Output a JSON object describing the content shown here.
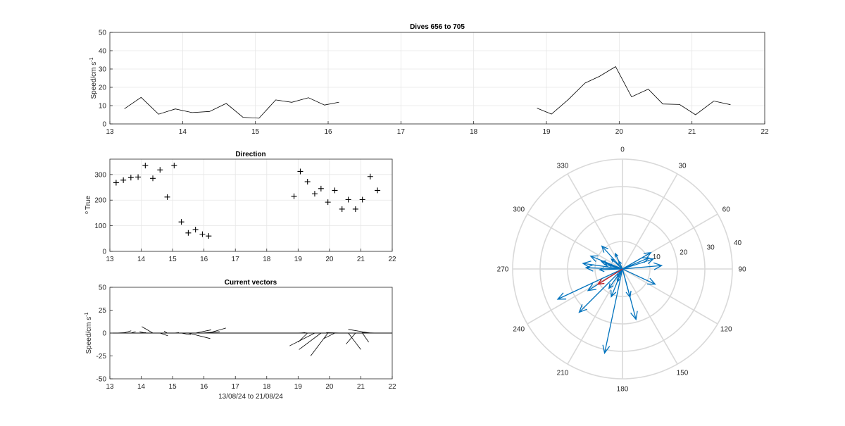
{
  "chart_data": [
    {
      "type": "line",
      "title": "Dives 656 to 705",
      "ylabel_main": "Speed/cm s",
      "ylabel_sup": "-1",
      "xlim": [
        13,
        22
      ],
      "ylim": [
        0,
        50
      ],
      "xticks": [
        13,
        14,
        15,
        16,
        17,
        18,
        19,
        20,
        21,
        22
      ],
      "yticks": [
        0,
        10,
        20,
        30,
        40,
        50
      ],
      "grid": true,
      "segments": [
        {
          "x": [
            13.2,
            13.43,
            13.67,
            13.9,
            14.13,
            14.37,
            14.6,
            14.83,
            15.05,
            15.28,
            15.5,
            15.73,
            15.95,
            16.15
          ],
          "y": [
            8.3,
            14.5,
            5.3,
            8.2,
            6.2,
            6.8,
            11.2,
            3.6,
            3.1,
            13.1,
            11.8,
            14.3,
            10.3,
            11.9
          ]
        },
        {
          "x": [
            18.87,
            19.07,
            19.3,
            19.53,
            19.73,
            19.95,
            20.17,
            20.4,
            20.6,
            20.83,
            21.05,
            21.3,
            21.53
          ],
          "y": [
            8.6,
            5.4,
            13.3,
            22.3,
            26.0,
            31.3,
            14.8,
            19.0,
            10.9,
            10.6,
            5.0,
            12.5,
            10.5
          ]
        }
      ]
    },
    {
      "type": "scatter",
      "title": "Direction",
      "ylabel_main": "True",
      "ylabel_prefix": "o",
      "xlim": [
        13,
        22
      ],
      "ylim": [
        0,
        360
      ],
      "xticks": [
        13,
        14,
        15,
        16,
        17,
        18,
        19,
        20,
        21,
        22
      ],
      "yticks": [
        0,
        100,
        200,
        300
      ],
      "grid": true,
      "marker": "+",
      "points": [
        [
          13.2,
          268
        ],
        [
          13.43,
          278
        ],
        [
          13.67,
          288
        ],
        [
          13.9,
          290
        ],
        [
          14.13,
          335
        ],
        [
          14.37,
          285
        ],
        [
          14.6,
          318
        ],
        [
          14.83,
          212
        ],
        [
          15.05,
          335
        ],
        [
          15.28,
          115
        ],
        [
          15.5,
          72
        ],
        [
          15.73,
          85
        ],
        [
          15.95,
          67
        ],
        [
          16.15,
          60
        ],
        [
          18.87,
          215
        ],
        [
          19.07,
          312
        ],
        [
          19.3,
          272
        ],
        [
          19.53,
          225
        ],
        [
          19.73,
          245
        ],
        [
          19.95,
          192
        ],
        [
          20.17,
          238
        ],
        [
          20.4,
          165
        ],
        [
          20.6,
          202
        ],
        [
          20.83,
          165
        ],
        [
          21.05,
          202
        ],
        [
          21.3,
          292
        ],
        [
          21.53,
          238
        ]
      ]
    },
    {
      "type": "vector",
      "title": "Current vectors",
      "ylabel_main": "Speed/cm s",
      "ylabel_sup": "-1",
      "xlabel": "13/08/24 to 21/08/24",
      "xlim": [
        13,
        22
      ],
      "ylim": [
        -50,
        50
      ],
      "xticks": [
        13,
        14,
        15,
        16,
        17,
        18,
        19,
        20,
        21,
        22
      ],
      "yticks": [
        -50,
        -25,
        0,
        25,
        50
      ],
      "grid": false,
      "sticks": [
        {
          "x": 13.2,
          "dx": 0.3,
          "dy": 0.5
        },
        {
          "x": 13.43,
          "dx": 0.25,
          "dy": 2.5
        },
        {
          "x": 13.67,
          "dx": 0.15,
          "dy": 1.5
        },
        {
          "x": 13.9,
          "dx": 0.25,
          "dy": 0.5
        },
        {
          "x": 14.13,
          "dx": -0.18,
          "dy": 1.5
        },
        {
          "x": 14.37,
          "dx": -0.35,
          "dy": 7.0
        },
        {
          "x": 14.6,
          "dx": 0.25,
          "dy": -3.0
        },
        {
          "x": 14.83,
          "dx": -0.1,
          "dy": 2.0
        },
        {
          "x": 15.05,
          "dx": 0.15,
          "dy": 0.5
        },
        {
          "x": 15.28,
          "dx": 0.3,
          "dy": -2.0
        },
        {
          "x": 15.5,
          "dx": 0.7,
          "dy": -6.0
        },
        {
          "x": 15.73,
          "dx": 0.5,
          "dy": 3.5
        },
        {
          "x": 15.95,
          "dx": 0.55,
          "dy": 1.5
        },
        {
          "x": 16.15,
          "dx": 0.55,
          "dy": 5.5
        },
        {
          "x": 18.87,
          "dx": 0.4,
          "dy": 0.3
        },
        {
          "x": 19.07,
          "dx": 0.15,
          "dy": 0.5
        },
        {
          "x": 19.3,
          "dx": -0.3,
          "dy": -10
        },
        {
          "x": 19.53,
          "dx": -0.8,
          "dy": -14
        },
        {
          "x": 19.73,
          "dx": -0.7,
          "dy": -18
        },
        {
          "x": 19.95,
          "dx": -0.55,
          "dy": -25
        },
        {
          "x": 20.17,
          "dx": -0.35,
          "dy": -6
        },
        {
          "x": 20.4,
          "dx": -0.5,
          "dy": 0.5
        },
        {
          "x": 20.6,
          "dx": 0.4,
          "dy": -18
        },
        {
          "x": 20.83,
          "dx": -0.3,
          "dy": -12
        },
        {
          "x": 21.05,
          "dx": 0.2,
          "dy": -10
        },
        {
          "x": 21.3,
          "dx": -0.7,
          "dy": 4.0
        },
        {
          "x": 21.53,
          "dx": -0.5,
          "dy": 0.5
        }
      ]
    },
    {
      "type": "compass",
      "angle_ticks": [
        "0",
        "30",
        "60",
        "90",
        "120",
        "150",
        "180",
        "210",
        "240",
        "270",
        "300",
        "330"
      ],
      "radial_ticks": [
        "10",
        "20",
        "30",
        "40"
      ],
      "rmax": 40,
      "vectors_blue": [
        [
          268,
          8.3
        ],
        [
          278,
          14.5
        ],
        [
          288,
          5.3
        ],
        [
          290,
          8.2
        ],
        [
          335,
          6.2
        ],
        [
          285,
          6.8
        ],
        [
          318,
          11.2
        ],
        [
          212,
          3.6
        ],
        [
          335,
          3.1
        ],
        [
          115,
          13.1
        ],
        [
          72,
          11.8
        ],
        [
          85,
          14.3
        ],
        [
          67,
          10.3
        ],
        [
          60,
          11.9
        ],
        [
          215,
          8.6
        ],
        [
          312,
          5.4
        ],
        [
          272,
          13.3
        ],
        [
          225,
          22.3
        ],
        [
          245,
          26.0
        ],
        [
          192,
          31.3
        ],
        [
          238,
          14.8
        ],
        [
          165,
          19.0
        ],
        [
          202,
          10.9
        ],
        [
          165,
          10.6
        ],
        [
          202,
          5.0
        ],
        [
          292,
          12.5
        ],
        [
          238,
          10.5
        ]
      ],
      "vector_red": [
        238,
        10.5
      ],
      "colors": {
        "blue": "#0072BD",
        "red": "#D62020",
        "grid": "#D9D9D9"
      }
    }
  ]
}
